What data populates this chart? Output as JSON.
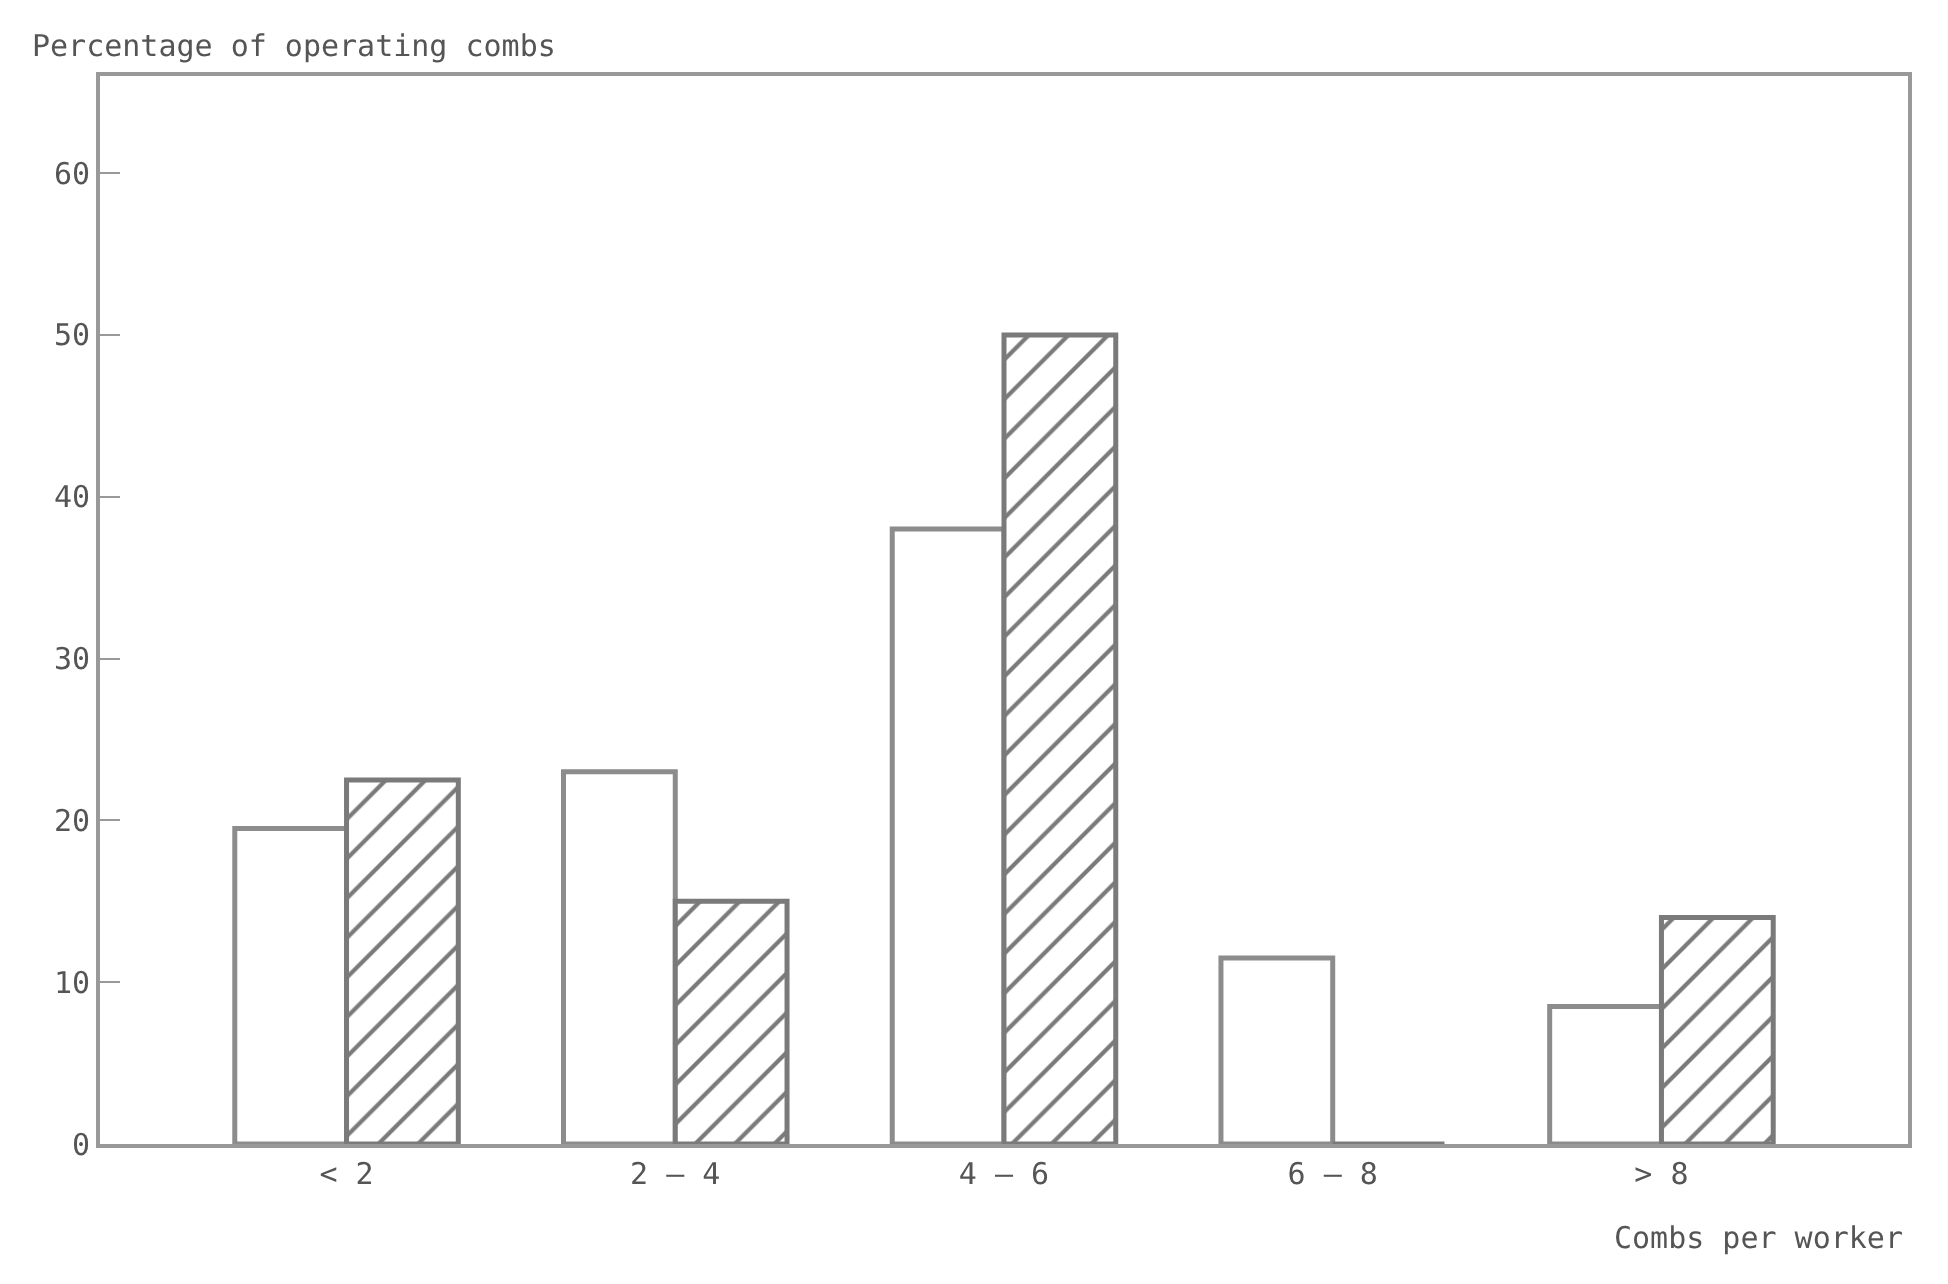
{
  "chart_data": {
    "type": "bar",
    "ylabel": "Percentage of operating combs",
    "xlabel": "Combs per worker",
    "categories": [
      "< 2",
      "2 – 4",
      "4 – 6",
      "6 – 8",
      "> 8"
    ],
    "series": [
      {
        "color": "#8c8c8c",
        "values": [
          19.5,
          23,
          38,
          11.5,
          8.5
        ]
      },
      {
        "color": "#7a7a7a",
        "values": [
          22.5,
          15,
          50,
          0,
          14
        ]
      }
    ],
    "ylim": [
      0,
      66
    ],
    "yticks": [
      0,
      10,
      20,
      30,
      40,
      50,
      60
    ],
    "grid": false
  }
}
